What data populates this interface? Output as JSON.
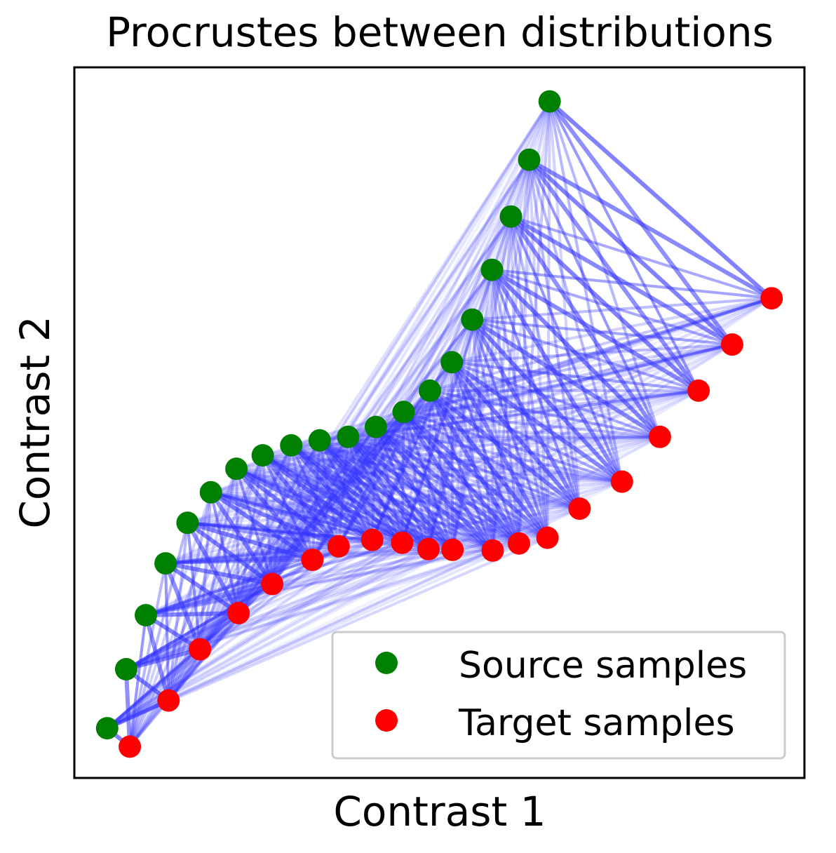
{
  "chart_data": {
    "type": "scatter",
    "title": "Procrustes between distributions",
    "xlabel": "Contrast 1",
    "ylabel": "Contrast 2",
    "xlim": [
      0,
      1
    ],
    "ylim": [
      0,
      1
    ],
    "ticks": "none",
    "grid": false,
    "legend": {
      "position": "lower-right"
    },
    "series": [
      {
        "name": "Source samples",
        "color": "#008000",
        "points": [
          [
            0.045,
            0.07
          ],
          [
            0.071,
            0.153
          ],
          [
            0.098,
            0.229
          ],
          [
            0.125,
            0.302
          ],
          [
            0.155,
            0.359
          ],
          [
            0.187,
            0.402
          ],
          [
            0.222,
            0.435
          ],
          [
            0.258,
            0.454
          ],
          [
            0.297,
            0.468
          ],
          [
            0.336,
            0.475
          ],
          [
            0.375,
            0.48
          ],
          [
            0.413,
            0.494
          ],
          [
            0.451,
            0.515
          ],
          [
            0.487,
            0.545
          ],
          [
            0.517,
            0.585
          ],
          [
            0.545,
            0.645
          ],
          [
            0.572,
            0.715
          ],
          [
            0.598,
            0.79
          ],
          [
            0.623,
            0.87
          ],
          [
            0.651,
            0.952
          ]
        ]
      },
      {
        "name": "Target samples",
        "color": "#ff0000",
        "points": [
          [
            0.076,
            0.044
          ],
          [
            0.129,
            0.109
          ],
          [
            0.172,
            0.181
          ],
          [
            0.225,
            0.232
          ],
          [
            0.271,
            0.273
          ],
          [
            0.326,
            0.307
          ],
          [
            0.362,
            0.326
          ],
          [
            0.408,
            0.335
          ],
          [
            0.449,
            0.331
          ],
          [
            0.485,
            0.322
          ],
          [
            0.518,
            0.321
          ],
          [
            0.573,
            0.32
          ],
          [
            0.609,
            0.33
          ],
          [
            0.648,
            0.338
          ],
          [
            0.692,
            0.379
          ],
          [
            0.75,
            0.417
          ],
          [
            0.802,
            0.48
          ],
          [
            0.855,
            0.545
          ],
          [
            0.901,
            0.61
          ],
          [
            0.955,
            0.675
          ]
        ]
      }
    ],
    "line_color": "#3333ff"
  }
}
